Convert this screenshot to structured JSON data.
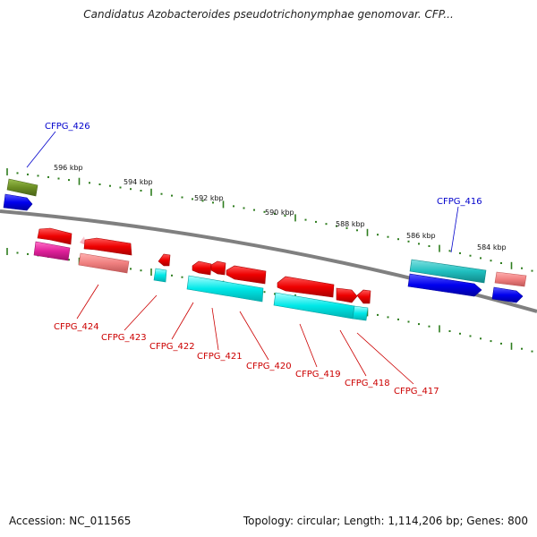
{
  "title": "Candidatus Azobacteroides pseudotrichonymphae genomovar. CFP...",
  "footer": {
    "accession": "Accession: NC_011565",
    "summary": "Topology: circular; Length: 1,114,206 bp; Genes: 800"
  },
  "ticks": [
    "596 kbp",
    "594 kbp",
    "592 kbp",
    "590 kbp",
    "588 kbp",
    "586 kbp",
    "584 kbp"
  ],
  "gene_labels": [
    {
      "id": "CFPG_426",
      "color": "#0000cc"
    },
    {
      "id": "CFPG_416",
      "color": "#0000cc"
    },
    {
      "id": "CFPG_424",
      "color": "#cc0000"
    },
    {
      "id": "CFPG_423",
      "color": "#cc0000"
    },
    {
      "id": "CFPG_422",
      "color": "#cc0000"
    },
    {
      "id": "CFPG_421",
      "color": "#cc0000"
    },
    {
      "id": "CFPG_420",
      "color": "#cc0000"
    },
    {
      "id": "CFPG_419",
      "color": "#cc0000"
    },
    {
      "id": "CFPG_418",
      "color": "#cc0000"
    },
    {
      "id": "CFPG_417",
      "color": "#cc0000"
    }
  ],
  "colors": {
    "backbone": "#808080",
    "tick": "#2e7d1e",
    "cds_forward": "#ee0000",
    "cds_reverse": "#0000ee",
    "rna_cyan": "#00e0e0",
    "teal": "#20c0c0",
    "olive": "#6b8e23",
    "magenta": "#e0209a",
    "salmon": "#f08080"
  }
}
